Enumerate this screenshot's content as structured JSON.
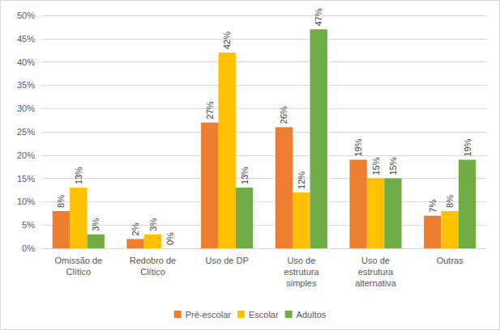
{
  "chart_data": {
    "type": "bar",
    "categories": [
      "Omissão de\nClítico",
      "Redobro de\nClítico",
      "Uso de DP",
      "Uso de\nestrutura\nsimples",
      "Uso de\nestrutura\nalternativa",
      "Outras"
    ],
    "series": [
      {
        "name": "Pré-escolar",
        "color": "#ED7D31",
        "values": [
          8,
          2,
          27,
          26,
          19,
          7
        ],
        "value_labels": [
          "8%",
          "2%",
          "27%",
          "26%",
          "19%",
          "7%"
        ]
      },
      {
        "name": "Escolar",
        "color": "#FFC000",
        "values": [
          13,
          3,
          42,
          12,
          15,
          8
        ],
        "value_labels": [
          "13%",
          "3%",
          "42%",
          "12%",
          "15%",
          "8%"
        ]
      },
      {
        "name": "Adultos",
        "color": "#70AD47",
        "values": [
          3,
          0,
          13,
          47,
          15,
          19
        ],
        "value_labels": [
          "3%",
          "0%",
          "13%",
          "47%",
          "15%",
          "19%"
        ]
      }
    ],
    "ylim": [
      0,
      50
    ],
    "yticks": [
      {
        "value": 0,
        "label": "0%"
      },
      {
        "value": 5,
        "label": "5%"
      },
      {
        "value": 10,
        "label": "10%"
      },
      {
        "value": 15,
        "label": "15%"
      },
      {
        "value": 20,
        "label": "20%"
      },
      {
        "value": 25,
        "label": "25%"
      },
      {
        "value": 30,
        "label": "30%"
      },
      {
        "value": 35,
        "label": "35%"
      },
      {
        "value": 40,
        "label": "40%"
      },
      {
        "value": 45,
        "label": "45%"
      },
      {
        "value": 50,
        "label": "50%"
      }
    ],
    "grid": true,
    "legend": "bottom",
    "data_labels": true
  }
}
